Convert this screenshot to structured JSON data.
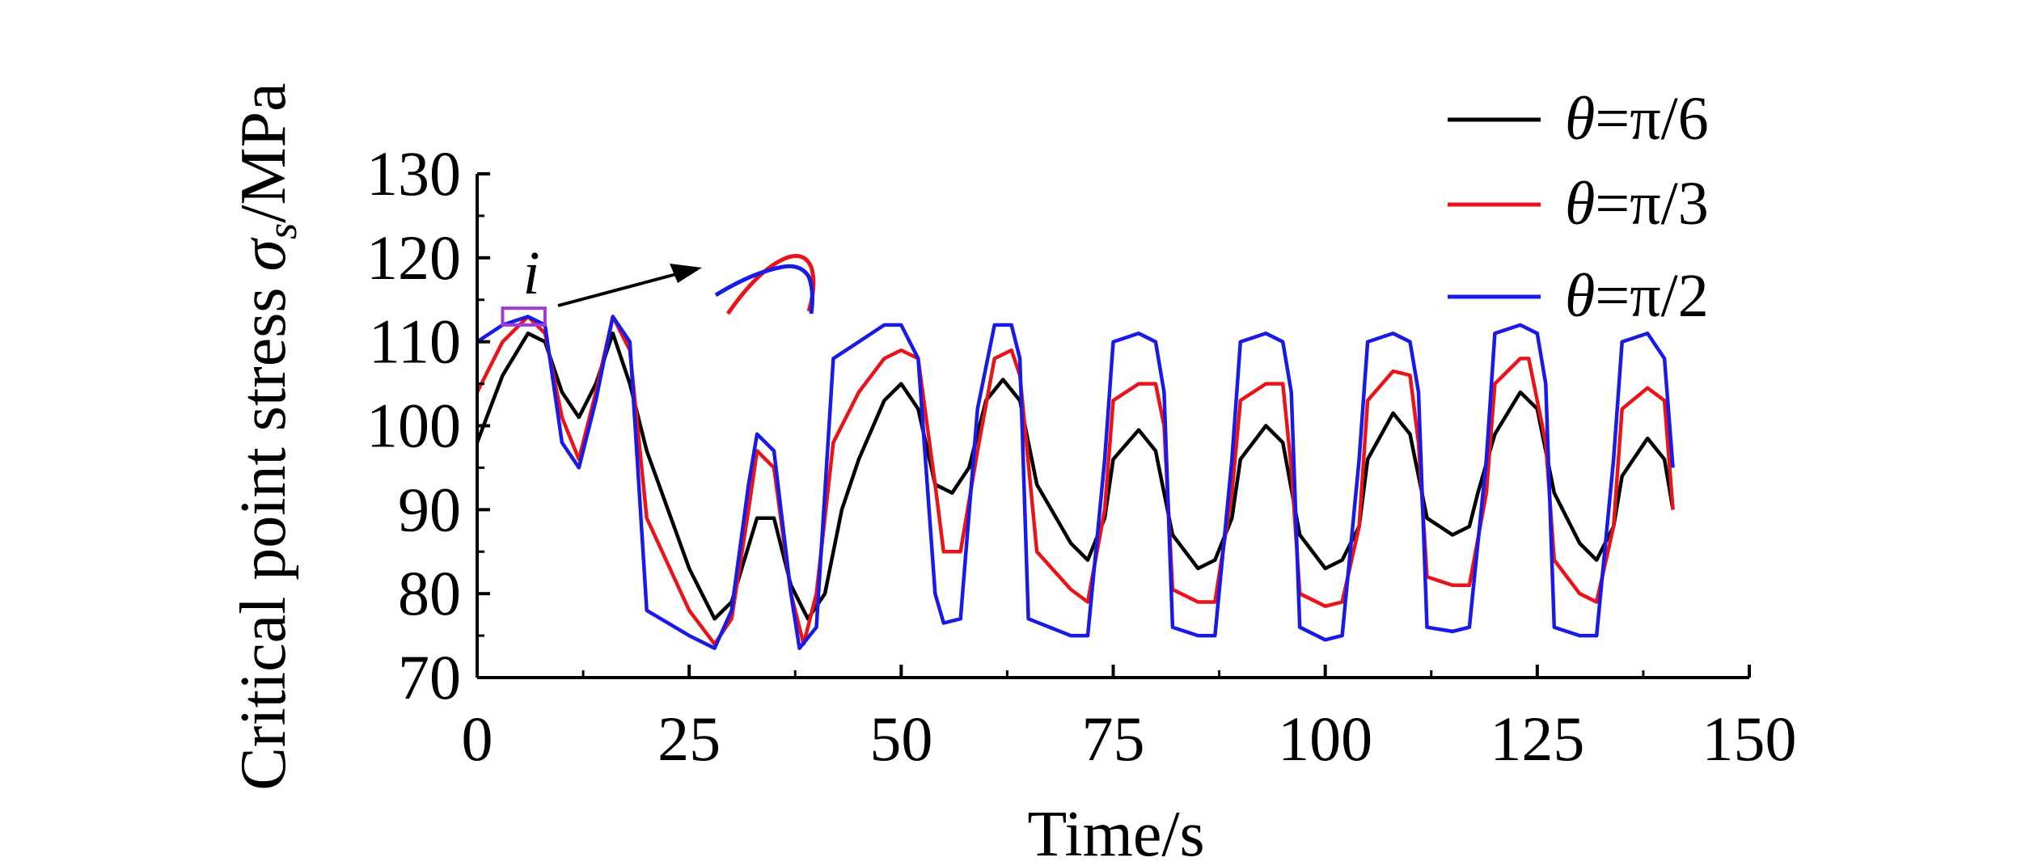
{
  "chart_data": {
    "type": "line",
    "xlabel": "Time/s",
    "ylabel_prefix": "Critical point stress ",
    "ylabel_symbol": "σ",
    "ylabel_subscript": "s",
    "ylabel_suffix": "/MPa",
    "xlim": [
      0,
      150
    ],
    "ylim": [
      70,
      130
    ],
    "xticks": [
      "0",
      "25",
      "50",
      "75",
      "100",
      "125",
      "150"
    ],
    "yticks": [
      "70",
      "80",
      "90",
      "100",
      "110",
      "120",
      "130"
    ],
    "grid": false,
    "legend_position": "top-right",
    "annotation": {
      "label": "i",
      "x_range": [
        3,
        8
      ],
      "y_range": [
        112,
        114
      ]
    },
    "series": [
      {
        "name": "θ=π/6",
        "legend_prefix": "θ",
        "legend_suffix": "=π/6",
        "color": "#000000",
        "points": [
          [
            0,
            98
          ],
          [
            3,
            106
          ],
          [
            6,
            111
          ],
          [
            8,
            110
          ],
          [
            10,
            104
          ],
          [
            12,
            101
          ],
          [
            14,
            105
          ],
          [
            16,
            111
          ],
          [
            18,
            105
          ],
          [
            20,
            97
          ],
          [
            25,
            83
          ],
          [
            28,
            77
          ],
          [
            30,
            79
          ],
          [
            33,
            89
          ],
          [
            35,
            89
          ],
          [
            37,
            81
          ],
          [
            39,
            77
          ],
          [
            41,
            80
          ],
          [
            43,
            90
          ],
          [
            45,
            96
          ],
          [
            48,
            103
          ],
          [
            50,
            105
          ],
          [
            52,
            102
          ],
          [
            54,
            93
          ],
          [
            56,
            92
          ],
          [
            58,
            95
          ],
          [
            60,
            103
          ],
          [
            62,
            105.5
          ],
          [
            64,
            103
          ],
          [
            66,
            93
          ],
          [
            70,
            86
          ],
          [
            72,
            84
          ],
          [
            74,
            89
          ],
          [
            75,
            96
          ],
          [
            78,
            99.5
          ],
          [
            80,
            97
          ],
          [
            82,
            87
          ],
          [
            85,
            83
          ],
          [
            87,
            84
          ],
          [
            89,
            89
          ],
          [
            90,
            96
          ],
          [
            93,
            100
          ],
          [
            95,
            98
          ],
          [
            97,
            87
          ],
          [
            100,
            83
          ],
          [
            102,
            84
          ],
          [
            104,
            88
          ],
          [
            105,
            96
          ],
          [
            108,
            101.5
          ],
          [
            110,
            99
          ],
          [
            112,
            89
          ],
          [
            115,
            87
          ],
          [
            117,
            88
          ],
          [
            118,
            92
          ],
          [
            120,
            99
          ],
          [
            123,
            104
          ],
          [
            125,
            102
          ],
          [
            127,
            92
          ],
          [
            130,
            86
          ],
          [
            132,
            84
          ],
          [
            134,
            88
          ],
          [
            135,
            94
          ],
          [
            138,
            98.5
          ],
          [
            140,
            96
          ],
          [
            141,
            90
          ]
        ]
      },
      {
        "name": "θ=π/3",
        "legend_prefix": "θ",
        "legend_suffix": "=π/3",
        "color": "#e8141a",
        "points": [
          [
            0,
            104
          ],
          [
            3,
            110
          ],
          [
            6,
            113
          ],
          [
            8,
            111
          ],
          [
            10,
            101
          ],
          [
            12,
            96
          ],
          [
            14,
            104
          ],
          [
            16,
            113
          ],
          [
            18,
            109
          ],
          [
            20,
            89
          ],
          [
            25,
            78
          ],
          [
            28,
            74
          ],
          [
            30,
            77
          ],
          [
            32,
            90
          ],
          [
            33,
            97
          ],
          [
            35,
            95
          ],
          [
            37,
            80
          ],
          [
            38.5,
            74
          ],
          [
            40,
            80
          ],
          [
            42,
            98
          ],
          [
            45,
            104
          ],
          [
            48,
            108
          ],
          [
            50,
            109
          ],
          [
            52,
            108
          ],
          [
            54,
            93
          ],
          [
            55,
            85
          ],
          [
            57,
            85
          ],
          [
            59,
            97
          ],
          [
            61,
            108
          ],
          [
            63,
            109
          ],
          [
            64,
            106
          ],
          [
            66,
            85
          ],
          [
            70,
            80.5
          ],
          [
            72,
            79
          ],
          [
            74,
            90
          ],
          [
            75,
            103
          ],
          [
            78,
            105
          ],
          [
            80,
            105
          ],
          [
            81,
            100
          ],
          [
            82,
            80.5
          ],
          [
            85,
            79
          ],
          [
            87,
            79
          ],
          [
            89,
            92
          ],
          [
            90,
            103
          ],
          [
            93,
            105
          ],
          [
            95,
            105
          ],
          [
            96,
            95
          ],
          [
            97,
            80
          ],
          [
            100,
            78.5
          ],
          [
            102,
            79
          ],
          [
            104,
            88
          ],
          [
            105,
            103
          ],
          [
            108,
            106.5
          ],
          [
            110,
            106
          ],
          [
            111,
            98
          ],
          [
            112,
            82
          ],
          [
            115,
            81
          ],
          [
            117,
            81
          ],
          [
            119,
            92
          ],
          [
            120,
            105
          ],
          [
            123,
            108
          ],
          [
            124,
            108
          ],
          [
            126,
            98
          ],
          [
            127,
            84
          ],
          [
            130,
            80
          ],
          [
            132,
            79
          ],
          [
            134,
            88
          ],
          [
            135,
            102
          ],
          [
            138,
            104.5
          ],
          [
            140,
            103
          ],
          [
            141,
            90
          ]
        ]
      },
      {
        "name": "θ=π/2",
        "legend_prefix": "θ",
        "legend_suffix": "=π/2",
        "color": "#1a1ae6",
        "points": [
          [
            0,
            110
          ],
          [
            3,
            112
          ],
          [
            6,
            113
          ],
          [
            8,
            112
          ],
          [
            10,
            98
          ],
          [
            12,
            95
          ],
          [
            14,
            103
          ],
          [
            16,
            113
          ],
          [
            18,
            110
          ],
          [
            20,
            78
          ],
          [
            25,
            75
          ],
          [
            28,
            73.5
          ],
          [
            30,
            78
          ],
          [
            32,
            93
          ],
          [
            33,
            99
          ],
          [
            35,
            97
          ],
          [
            37,
            80
          ],
          [
            38,
            73.5
          ],
          [
            40,
            76
          ],
          [
            42,
            108
          ],
          [
            45,
            110
          ],
          [
            48,
            112
          ],
          [
            50,
            112
          ],
          [
            52,
            108
          ],
          [
            54,
            80
          ],
          [
            55,
            76.5
          ],
          [
            57,
            77
          ],
          [
            59,
            102
          ],
          [
            61,
            112
          ],
          [
            63,
            112
          ],
          [
            64,
            108
          ],
          [
            65,
            77
          ],
          [
            70,
            75
          ],
          [
            72,
            75
          ],
          [
            74,
            96
          ],
          [
            75,
            110
          ],
          [
            78,
            111
          ],
          [
            80,
            110
          ],
          [
            81,
            104
          ],
          [
            82,
            76
          ],
          [
            85,
            75
          ],
          [
            87,
            75
          ],
          [
            89,
            96
          ],
          [
            90,
            110
          ],
          [
            93,
            111
          ],
          [
            95,
            110
          ],
          [
            96,
            104
          ],
          [
            97,
            76
          ],
          [
            100,
            74.5
          ],
          [
            102,
            75
          ],
          [
            104,
            96
          ],
          [
            105,
            110
          ],
          [
            108,
            111
          ],
          [
            110,
            110
          ],
          [
            111,
            104
          ],
          [
            112,
            76
          ],
          [
            115,
            75.5
          ],
          [
            117,
            76
          ],
          [
            119,
            96
          ],
          [
            120,
            111
          ],
          [
            123,
            112
          ],
          [
            125,
            111
          ],
          [
            126,
            105
          ],
          [
            127,
            76
          ],
          [
            130,
            75
          ],
          [
            132,
            75
          ],
          [
            134,
            96
          ],
          [
            135,
            110
          ],
          [
            138,
            111
          ],
          [
            140,
            108
          ],
          [
            141,
            95
          ]
        ]
      }
    ]
  }
}
